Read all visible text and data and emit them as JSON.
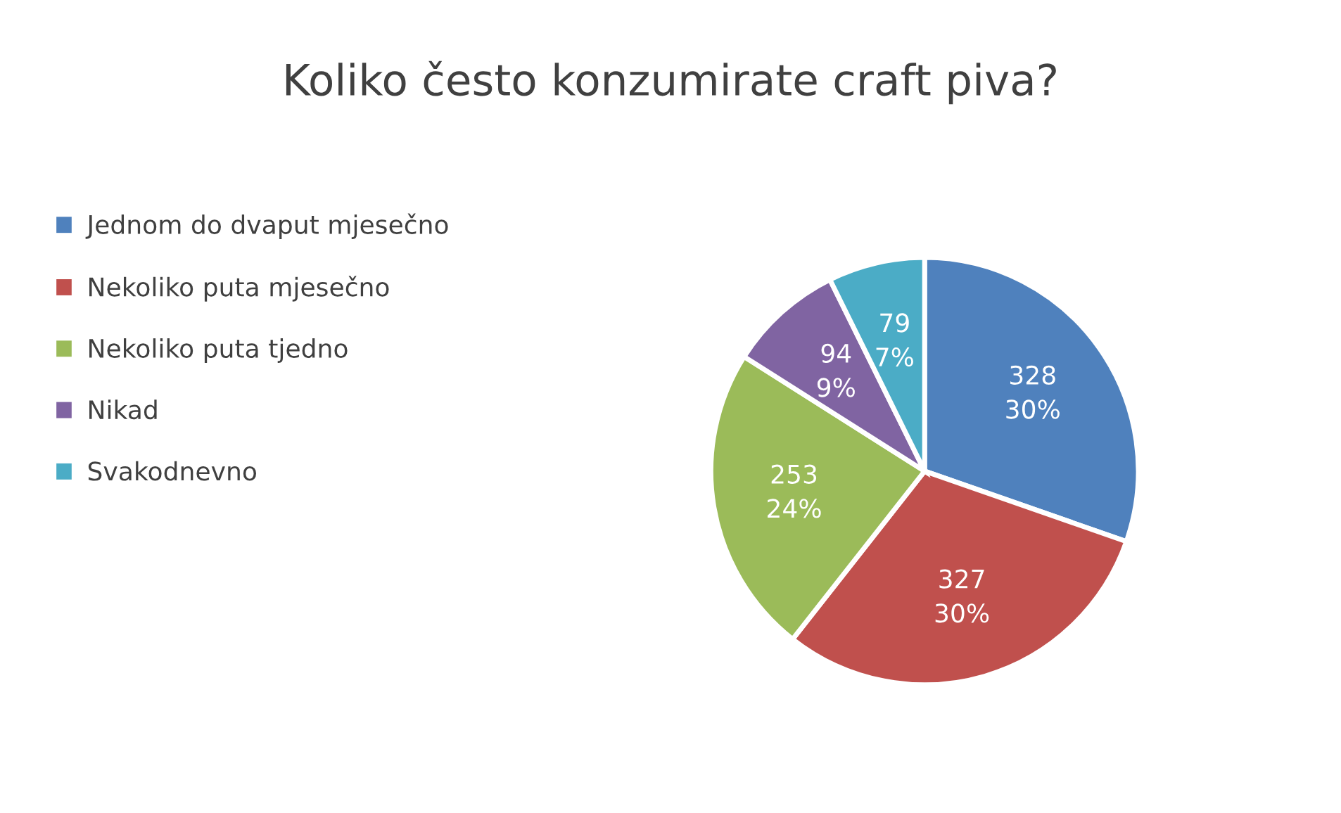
{
  "chart_data": {
    "type": "pie",
    "title": "Koliko često konzumirate craft piva?",
    "categories": [
      "Jednom do dvaput mjesečno",
      "Nekoliko puta mjesečno",
      "Nekoliko puta tjedno",
      "Nikad",
      "Svakodnevno"
    ],
    "values": [
      328,
      327,
      253,
      94,
      79
    ],
    "value_labels": [
      "328\n30%",
      "327\n30%",
      "253\n24%",
      "94\n9%",
      "79\n7%"
    ],
    "colors": [
      "#4f81bd",
      "#c0504d",
      "#9bbb59",
      "#8064a2",
      "#4bacc6"
    ],
    "legend": "left"
  }
}
